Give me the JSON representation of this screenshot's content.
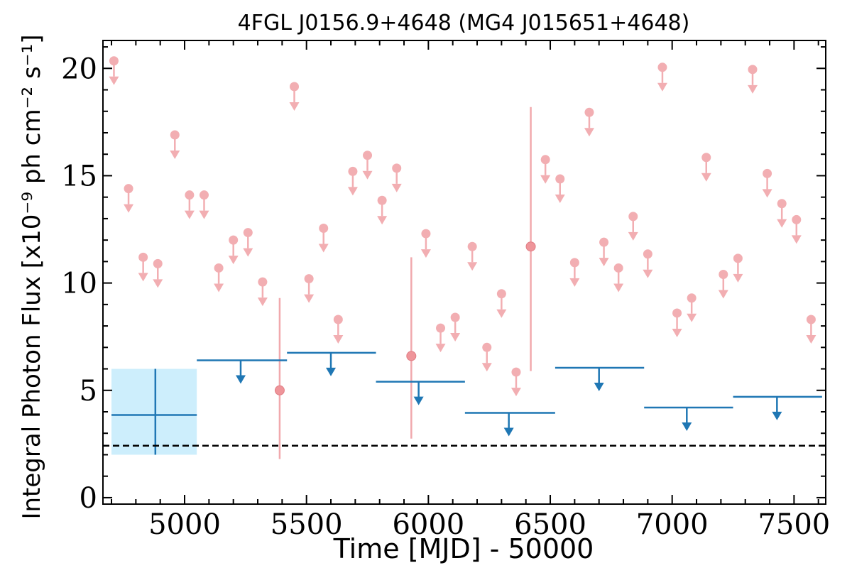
{
  "chart_data": {
    "type": "scatter",
    "title": "4FGL J0156.9+4648 (MG4 J015651+4648)",
    "xlabel": "Time [MJD] - 50000",
    "ylabel": "Integral Photon Flux [x10⁻⁹ ph cm⁻² s⁻¹]",
    "xlim": [
      4665,
      7630
    ],
    "ylim": [
      -0.3,
      21.3
    ],
    "x_ticks": [
      5000,
      5500,
      6000,
      6500,
      7000,
      7500
    ],
    "y_ticks": [
      0,
      5,
      10,
      15,
      20
    ],
    "grid": false,
    "colors": {
      "short_bin": "#f0a0a5",
      "long_bin": "#1f77b4",
      "band": "#cdeefc",
      "baseline": "#000000"
    },
    "baseline": {
      "style": "dashed",
      "value": 2.42
    },
    "long_bins": {
      "band": {
        "x": [
          4700,
          5050
        ],
        "y": [
          2.0,
          6.0
        ]
      },
      "detections": [
        {
          "x": 4880,
          "x_range": [
            4700,
            5050
          ],
          "y": 3.85,
          "y_err": [
            2.0,
            6.0
          ]
        }
      ],
      "upper_limits": [
        {
          "x": 5230,
          "x_range": [
            5050,
            5420
          ],
          "y": 6.4
        },
        {
          "x": 5600,
          "x_range": [
            5420,
            5785
          ],
          "y": 6.75
        },
        {
          "x": 5960,
          "x_range": [
            5785,
            6150
          ],
          "y": 5.4
        },
        {
          "x": 6330,
          "x_range": [
            6150,
            6520
          ],
          "y": 3.95
        },
        {
          "x": 6700,
          "x_range": [
            6520,
            6885
          ],
          "y": 6.05
        },
        {
          "x": 7060,
          "x_range": [
            6885,
            7250
          ],
          "y": 4.2
        },
        {
          "x": 7430,
          "x_range": [
            7250,
            7615
          ],
          "y": 4.7
        }
      ]
    },
    "short_bins": {
      "detections": [
        {
          "x": 5390,
          "y": 5.0,
          "y_err": [
            1.8,
            9.3
          ]
        },
        {
          "x": 5930,
          "y": 6.6,
          "y_err": [
            2.75,
            11.2
          ]
        },
        {
          "x": 6420,
          "y": 11.7,
          "y_err": [
            5.9,
            18.2
          ]
        }
      ],
      "upper_limits": [
        {
          "x": 4710,
          "y": 20.35
        },
        {
          "x": 4770,
          "y": 14.4
        },
        {
          "x": 4830,
          "y": 11.2
        },
        {
          "x": 4890,
          "y": 10.9
        },
        {
          "x": 4960,
          "y": 16.9
        },
        {
          "x": 5020,
          "y": 14.1
        },
        {
          "x": 5080,
          "y": 14.1
        },
        {
          "x": 5140,
          "y": 10.7
        },
        {
          "x": 5200,
          "y": 12.0
        },
        {
          "x": 5260,
          "y": 12.35
        },
        {
          "x": 5320,
          "y": 10.05
        },
        {
          "x": 5450,
          "y": 19.15
        },
        {
          "x": 5510,
          "y": 10.2
        },
        {
          "x": 5570,
          "y": 12.55
        },
        {
          "x": 5630,
          "y": 8.3
        },
        {
          "x": 5690,
          "y": 15.2
        },
        {
          "x": 5750,
          "y": 15.95
        },
        {
          "x": 5810,
          "y": 13.85
        },
        {
          "x": 5870,
          "y": 15.35
        },
        {
          "x": 5990,
          "y": 12.3
        },
        {
          "x": 6050,
          "y": 7.9
        },
        {
          "x": 6110,
          "y": 8.4
        },
        {
          "x": 6180,
          "y": 11.7
        },
        {
          "x": 6240,
          "y": 7.0
        },
        {
          "x": 6300,
          "y": 9.5
        },
        {
          "x": 6360,
          "y": 5.85
        },
        {
          "x": 6480,
          "y": 15.75
        },
        {
          "x": 6540,
          "y": 14.85
        },
        {
          "x": 6600,
          "y": 10.95
        },
        {
          "x": 6660,
          "y": 17.95
        },
        {
          "x": 6720,
          "y": 11.9
        },
        {
          "x": 6780,
          "y": 10.7
        },
        {
          "x": 6840,
          "y": 13.1
        },
        {
          "x": 6900,
          "y": 11.35
        },
        {
          "x": 6960,
          "y": 20.05
        },
        {
          "x": 7020,
          "y": 8.6
        },
        {
          "x": 7080,
          "y": 9.3
        },
        {
          "x": 7140,
          "y": 15.85
        },
        {
          "x": 7210,
          "y": 10.4
        },
        {
          "x": 7270,
          "y": 11.15
        },
        {
          "x": 7330,
          "y": 19.95
        },
        {
          "x": 7390,
          "y": 15.1
        },
        {
          "x": 7450,
          "y": 13.7
        },
        {
          "x": 7510,
          "y": 12.95
        },
        {
          "x": 7570,
          "y": 8.3
        }
      ]
    }
  }
}
